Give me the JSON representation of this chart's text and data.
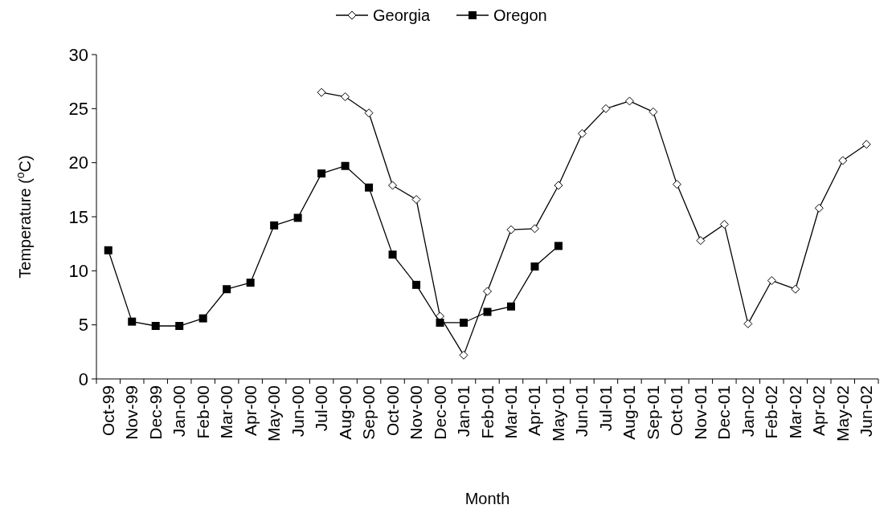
{
  "chart_data": {
    "type": "line",
    "xlabel": "Month",
    "ylabel": "Temperature ($^{o}$C)",
    "categories": [
      "Oct-99",
      "Nov-99",
      "Dec-99",
      "Jan-00",
      "Feb-00",
      "Mar-00",
      "Apr-00",
      "May-00",
      "Jun-00",
      "Jul-00",
      "Aug-00",
      "Sep-00",
      "Oct-00",
      "Nov-00",
      "Dec-00",
      "Jan-01",
      "Feb-01",
      "Mar-01",
      "Apr-01",
      "May-01",
      "Jun-01",
      "Jul-01",
      "Aug-01",
      "Sep-01",
      "Oct-01",
      "Nov-01",
      "Dec-01",
      "Jan-02",
      "Feb-02",
      "Mar-02",
      "Apr-02",
      "May-02",
      "Jun-02"
    ],
    "series": [
      {
        "name": "Georgia",
        "color": "#000000",
        "marker": "diamond",
        "values": [
          null,
          null,
          null,
          null,
          null,
          null,
          null,
          null,
          null,
          26.5,
          26.1,
          24.6,
          17.9,
          16.6,
          5.8,
          2.2,
          8.1,
          13.8,
          13.9,
          17.9,
          22.7,
          25.0,
          25.7,
          24.7,
          18.0,
          12.8,
          14.3,
          5.1,
          9.1,
          8.3,
          15.8,
          20.2,
          21.7
        ]
      },
      {
        "name": "Oregon",
        "color": "#000000",
        "marker": "square",
        "values": [
          11.9,
          5.3,
          4.9,
          4.9,
          5.6,
          8.3,
          8.9,
          14.2,
          14.9,
          19.0,
          19.7,
          17.7,
          11.5,
          8.7,
          5.2,
          5.2,
          6.2,
          6.7,
          10.4,
          12.3,
          null,
          null,
          null,
          null,
          null,
          null,
          null,
          null,
          null,
          null,
          null,
          null,
          null
        ]
      }
    ],
    "ylim": [
      0,
      30
    ],
    "yticks": [
      0,
      5,
      10,
      15,
      20,
      25,
      30
    ],
    "grid": false,
    "legend": "top"
  }
}
